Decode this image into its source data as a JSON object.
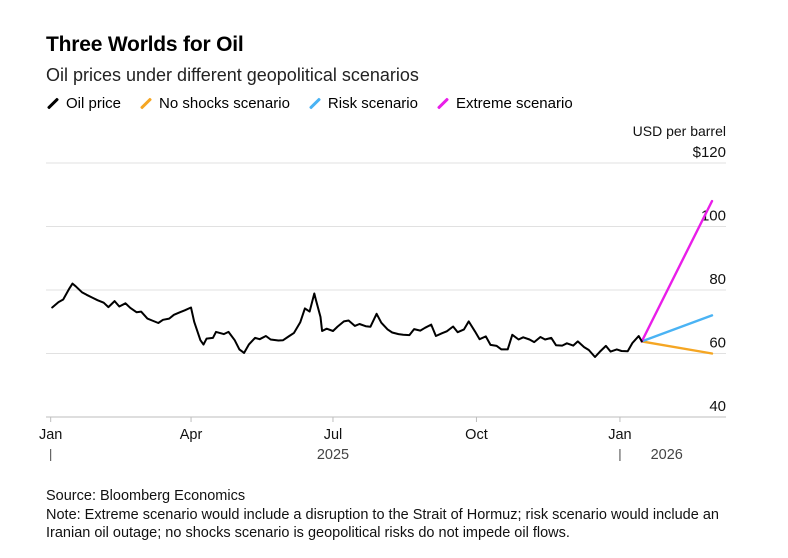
{
  "title": "Three Worlds for Oil",
  "subtitle": "Oil prices under different geopolitical scenarios",
  "legend": [
    {
      "label": "Oil price",
      "color": "#000000"
    },
    {
      "label": "No shocks scenario",
      "color": "#f5a623"
    },
    {
      "label": "Risk scenario",
      "color": "#4ab3f4"
    },
    {
      "label": "Extreme scenario",
      "color": "#e91ee9"
    }
  ],
  "footer": {
    "source": "Source: Bloomberg Economics",
    "note": "Note: Extreme scenario would include a disruption to the Strait of Hormuz; risk scenario would include an Iranian oil outage; no shocks scenario is geopolitical risks do not impede oil flows."
  },
  "chart_data": {
    "type": "line",
    "ylabel": "USD per barrel",
    "ylim": [
      40,
      120
    ],
    "yticks": [
      {
        "value": 120,
        "label": "$120"
      },
      {
        "value": 100,
        "label": "100"
      },
      {
        "value": 80,
        "label": "80"
      },
      {
        "value": 60,
        "label": "60"
      },
      {
        "value": 40,
        "label": "40"
      }
    ],
    "xlim": [
      "2024-12-29",
      "2026-03-10"
    ],
    "xticks": [
      {
        "date": "2025-01-01",
        "label": "Jan"
      },
      {
        "date": "2025-04-01",
        "label": "Apr"
      },
      {
        "date": "2025-07-01",
        "label": "Jul"
      },
      {
        "date": "2025-10-01",
        "label": "Oct"
      },
      {
        "date": "2026-01-01",
        "label": "Jan"
      }
    ],
    "year_labels": [
      {
        "label": "2025",
        "date": "2025-07-01"
      },
      {
        "label": "2026",
        "date": "2026-01-31"
      }
    ],
    "year_markers": [
      "2025-01-01",
      "2026-01-01"
    ],
    "series": [
      {
        "name": "Oil price",
        "color": "#000000",
        "points": [
          [
            "2025-01-02",
            74.5
          ],
          [
            "2025-01-06",
            76.2
          ],
          [
            "2025-01-09",
            77.0
          ],
          [
            "2025-01-13",
            80.5
          ],
          [
            "2025-01-15",
            82.0
          ],
          [
            "2025-01-17",
            81.2
          ],
          [
            "2025-01-21",
            79.3
          ],
          [
            "2025-01-24",
            78.5
          ],
          [
            "2025-01-28",
            77.5
          ],
          [
            "2025-01-31",
            76.8
          ],
          [
            "2025-02-04",
            76.0
          ],
          [
            "2025-02-07",
            74.6
          ],
          [
            "2025-02-11",
            76.5
          ],
          [
            "2025-02-14",
            74.8
          ],
          [
            "2025-02-18",
            75.8
          ],
          [
            "2025-02-21",
            74.4
          ],
          [
            "2025-02-25",
            73.0
          ],
          [
            "2025-02-28",
            73.2
          ],
          [
            "2025-03-04",
            71.0
          ],
          [
            "2025-03-07",
            70.4
          ],
          [
            "2025-03-11",
            69.6
          ],
          [
            "2025-03-14",
            70.6
          ],
          [
            "2025-03-18",
            71.0
          ],
          [
            "2025-03-21",
            72.2
          ],
          [
            "2025-03-25",
            73.0
          ],
          [
            "2025-03-28",
            73.6
          ],
          [
            "2025-04-01",
            74.5
          ],
          [
            "2025-04-03",
            70.0
          ],
          [
            "2025-04-07",
            64.2
          ],
          [
            "2025-04-09",
            62.8
          ],
          [
            "2025-04-11",
            64.7
          ],
          [
            "2025-04-15",
            64.9
          ],
          [
            "2025-04-17",
            66.8
          ],
          [
            "2025-04-22",
            66.1
          ],
          [
            "2025-04-25",
            66.8
          ],
          [
            "2025-04-29",
            64.2
          ],
          [
            "2025-05-02",
            61.3
          ],
          [
            "2025-05-05",
            60.2
          ],
          [
            "2025-05-08",
            62.8
          ],
          [
            "2025-05-12",
            64.9
          ],
          [
            "2025-05-15",
            64.5
          ],
          [
            "2025-05-19",
            65.5
          ],
          [
            "2025-05-22",
            64.4
          ],
          [
            "2025-05-27",
            64.1
          ],
          [
            "2025-05-30",
            64.2
          ],
          [
            "2025-06-03",
            65.5
          ],
          [
            "2025-06-06",
            66.5
          ],
          [
            "2025-06-10",
            69.8
          ],
          [
            "2025-06-13",
            74.2
          ],
          [
            "2025-06-16",
            73.2
          ],
          [
            "2025-06-19",
            78.9
          ],
          [
            "2025-06-20",
            77.0
          ],
          [
            "2025-06-23",
            71.5
          ],
          [
            "2025-06-24",
            67.1
          ],
          [
            "2025-06-27",
            67.8
          ],
          [
            "2025-07-01",
            67.1
          ],
          [
            "2025-07-04",
            68.5
          ],
          [
            "2025-07-08",
            70.1
          ],
          [
            "2025-07-11",
            70.4
          ],
          [
            "2025-07-15",
            68.7
          ],
          [
            "2025-07-18",
            69.3
          ],
          [
            "2025-07-22",
            68.6
          ],
          [
            "2025-07-25",
            68.4
          ],
          [
            "2025-07-29",
            72.5
          ],
          [
            "2025-08-01",
            69.7
          ],
          [
            "2025-08-05",
            67.6
          ],
          [
            "2025-08-08",
            66.6
          ],
          [
            "2025-08-12",
            66.1
          ],
          [
            "2025-08-15",
            65.9
          ],
          [
            "2025-08-19",
            65.8
          ],
          [
            "2025-08-22",
            67.7
          ],
          [
            "2025-08-26",
            67.2
          ],
          [
            "2025-08-29",
            68.1
          ],
          [
            "2025-09-02",
            69.1
          ],
          [
            "2025-09-05",
            65.5
          ],
          [
            "2025-09-09",
            66.4
          ],
          [
            "2025-09-12",
            67.0
          ],
          [
            "2025-09-16",
            68.5
          ],
          [
            "2025-09-19",
            66.7
          ],
          [
            "2025-09-23",
            67.6
          ],
          [
            "2025-09-26",
            70.1
          ],
          [
            "2025-09-30",
            67.0
          ],
          [
            "2025-10-03",
            64.5
          ],
          [
            "2025-10-07",
            65.4
          ],
          [
            "2025-10-10",
            62.7
          ],
          [
            "2025-10-14",
            62.4
          ],
          [
            "2025-10-17",
            61.3
          ],
          [
            "2025-10-21",
            61.3
          ],
          [
            "2025-10-24",
            65.9
          ],
          [
            "2025-10-28",
            64.4
          ],
          [
            "2025-10-31",
            65.1
          ],
          [
            "2025-11-04",
            64.4
          ],
          [
            "2025-11-07",
            63.6
          ],
          [
            "2025-11-11",
            65.2
          ],
          [
            "2025-11-14",
            64.4
          ],
          [
            "2025-11-18",
            64.9
          ],
          [
            "2025-11-21",
            62.6
          ],
          [
            "2025-11-25",
            62.5
          ],
          [
            "2025-11-28",
            63.2
          ],
          [
            "2025-12-02",
            62.5
          ],
          [
            "2025-12-05",
            63.8
          ],
          [
            "2025-12-09",
            62.0
          ],
          [
            "2025-12-12",
            61.1
          ],
          [
            "2025-12-16",
            58.9
          ],
          [
            "2025-12-19",
            60.5
          ],
          [
            "2025-12-23",
            62.4
          ],
          [
            "2025-12-26",
            60.6
          ],
          [
            "2025-12-30",
            61.3
          ],
          [
            "2026-01-02",
            60.8
          ],
          [
            "2026-01-06",
            60.7
          ],
          [
            "2026-01-09",
            63.3
          ],
          [
            "2026-01-13",
            65.5
          ],
          [
            "2026-01-15",
            63.8
          ]
        ]
      },
      {
        "name": "No shocks scenario",
        "color": "#f5a623",
        "points": [
          [
            "2026-01-15",
            63.8
          ],
          [
            "2026-03-01",
            60.0
          ]
        ]
      },
      {
        "name": "Risk scenario",
        "color": "#4ab3f4",
        "points": [
          [
            "2026-01-15",
            63.8
          ],
          [
            "2026-03-01",
            72.0
          ]
        ]
      },
      {
        "name": "Extreme scenario",
        "color": "#e91ee9",
        "points": [
          [
            "2026-01-15",
            63.8
          ],
          [
            "2026-03-01",
            108.0
          ]
        ]
      }
    ]
  }
}
